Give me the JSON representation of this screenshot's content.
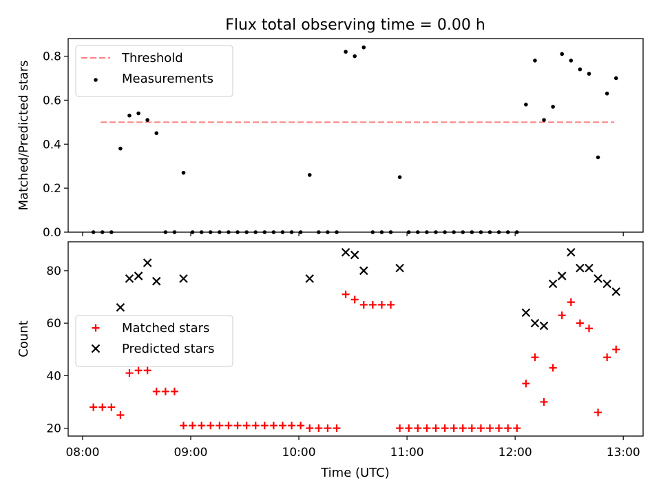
{
  "title": "Flux total observing time = 0.00 h",
  "xlabel": "Time (UTC)",
  "x_ticks": [
    "08:00",
    "09:00",
    "10:00",
    "11:00",
    "12:00",
    "13:00"
  ],
  "chart_data": [
    {
      "type": "scatter",
      "ylabel": "Matched/Predicted stars",
      "ylim": [
        0,
        0.88
      ],
      "xlim": [
        "07:52",
        "13:11"
      ],
      "y_ticks": [
        "0.0",
        "0.2",
        "0.4",
        "0.6",
        "0.8"
      ],
      "legend_position": "upper-left",
      "threshold": {
        "name": "Threshold",
        "value": 0.5,
        "x_range": [
          "08:10",
          "12:55"
        ],
        "color": "#ff7f7f"
      },
      "series": [
        {
          "name": "Measurements",
          "color": "#000000",
          "x": [
            "08:06",
            "08:11",
            "08:16",
            "08:21",
            "08:26",
            "08:31",
            "08:36",
            "08:41",
            "08:46",
            "08:51",
            "08:56",
            "09:01",
            "09:06",
            "09:11",
            "09:16",
            "09:21",
            "09:26",
            "09:31",
            "09:36",
            "09:41",
            "09:46",
            "09:51",
            "09:56",
            "10:01",
            "10:06",
            "10:11",
            "10:16",
            "10:21",
            "10:26",
            "10:31",
            "10:36",
            "10:41",
            "10:46",
            "10:51",
            "10:56",
            "11:01",
            "11:06",
            "11:11",
            "11:16",
            "11:21",
            "11:26",
            "11:31",
            "11:36",
            "11:41",
            "11:46",
            "11:51",
            "11:56",
            "12:01",
            "12:06",
            "12:11",
            "12:16",
            "12:21",
            "12:26",
            "12:31",
            "12:36",
            "12:41",
            "12:46",
            "12:51",
            "12:56"
          ],
          "y": [
            0,
            0,
            0,
            0.38,
            0.53,
            0.54,
            0.51,
            0.45,
            0,
            0,
            0.27,
            0,
            0,
            0,
            0,
            0,
            0,
            0,
            0,
            0,
            0,
            0,
            0,
            0,
            0.26,
            0,
            0,
            0,
            0.82,
            0.8,
            0.84,
            0,
            0,
            0,
            0.25,
            0,
            0,
            0,
            0,
            0,
            0,
            0,
            0,
            0,
            0,
            0,
            0,
            0,
            0.58,
            0.78,
            0.51,
            0.57,
            0.81,
            0.78,
            0.74,
            0.72,
            0.34,
            0.63,
            0.7
          ]
        }
      ]
    },
    {
      "type": "scatter",
      "ylabel": "Count",
      "ylim": [
        17,
        91
      ],
      "xlim": [
        "07:52",
        "13:11"
      ],
      "y_ticks": [
        "20",
        "40",
        "60",
        "80"
      ],
      "legend_position": "center-left",
      "series": [
        {
          "name": "Matched stars",
          "marker": "+",
          "color": "#ff0000",
          "x": [
            "08:06",
            "08:11",
            "08:16",
            "08:21",
            "08:26",
            "08:31",
            "08:36",
            "08:41",
            "08:46",
            "08:51",
            "08:56",
            "09:01",
            "09:06",
            "09:11",
            "09:16",
            "09:21",
            "09:26",
            "09:31",
            "09:36",
            "09:41",
            "09:46",
            "09:51",
            "09:56",
            "10:01",
            "10:06",
            "10:11",
            "10:16",
            "10:21",
            "10:26",
            "10:31",
            "10:36",
            "10:41",
            "10:46",
            "10:51",
            "10:56",
            "11:01",
            "11:06",
            "11:11",
            "11:16",
            "11:21",
            "11:26",
            "11:31",
            "11:36",
            "11:41",
            "11:46",
            "11:51",
            "11:56",
            "12:01",
            "12:06",
            "12:11",
            "12:16",
            "12:21",
            "12:26",
            "12:31",
            "12:36",
            "12:41",
            "12:46",
            "12:51",
            "12:56"
          ],
          "y": [
            28,
            28,
            28,
            25,
            41,
            42,
            42,
            34,
            34,
            34,
            21,
            21,
            21,
            21,
            21,
            21,
            21,
            21,
            21,
            21,
            21,
            21,
            21,
            21,
            20,
            20,
            20,
            20,
            71,
            69,
            67,
            67,
            67,
            67,
            20,
            20,
            20,
            20,
            20,
            20,
            20,
            20,
            20,
            20,
            20,
            20,
            20,
            20,
            37,
            47,
            30,
            43,
            63,
            68,
            60,
            58,
            26,
            47,
            50
          ]
        },
        {
          "name": "Predicted stars",
          "marker": "x",
          "color": "#000000",
          "x": [
            "08:21",
            "08:26",
            "08:31",
            "08:36",
            "08:41",
            "08:56",
            "10:06",
            "10:26",
            "10:31",
            "10:36",
            "10:56",
            "12:06",
            "12:11",
            "12:16",
            "12:21",
            "12:26",
            "12:31",
            "12:36",
            "12:41",
            "12:46",
            "12:51",
            "12:56"
          ],
          "y": [
            66,
            77,
            78,
            83,
            76,
            77,
            77,
            87,
            86,
            80,
            81,
            64,
            60,
            59,
            75,
            78,
            87,
            81,
            81,
            77,
            75,
            72
          ]
        }
      ]
    }
  ]
}
